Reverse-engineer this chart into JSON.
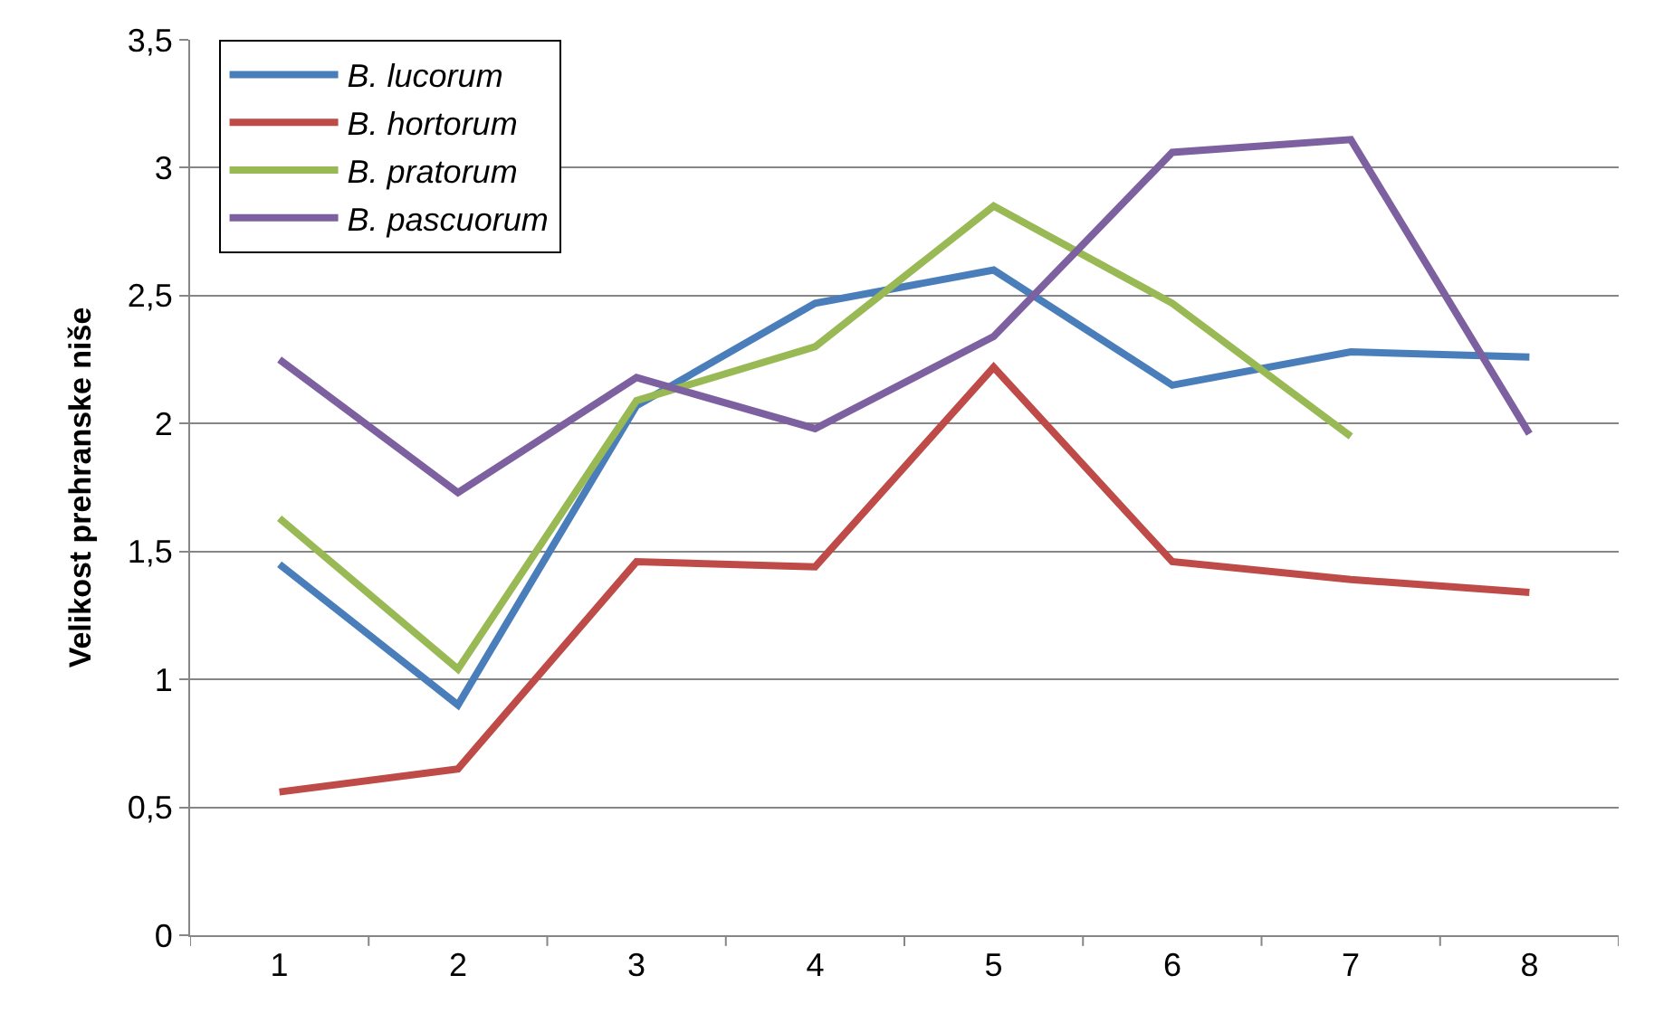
{
  "chart_data": {
    "type": "line",
    "ylabel": "Velikost prehranske niše",
    "categories": [
      "1",
      "2",
      "3",
      "4",
      "5",
      "6",
      "7",
      "8"
    ],
    "series": [
      {
        "name": "B. lucorum",
        "color": "#4a7ebb",
        "values": [
          1.45,
          0.9,
          2.07,
          2.47,
          2.6,
          2.15,
          2.28,
          2.26
        ]
      },
      {
        "name": "B. hortorum",
        "color": "#be4b48",
        "values": [
          0.56,
          0.65,
          1.46,
          1.44,
          2.22,
          1.46,
          1.39,
          1.34
        ]
      },
      {
        "name": "B. pratorum",
        "color": "#98b954",
        "values": [
          1.63,
          1.04,
          2.09,
          2.3,
          2.85,
          2.47,
          1.95,
          null
        ]
      },
      {
        "name": "B. pascuorum",
        "color": "#7d60a0",
        "values": [
          2.25,
          1.73,
          2.18,
          1.98,
          2.34,
          3.06,
          3.11,
          1.96
        ]
      }
    ],
    "ylim": [
      0,
      3.5
    ],
    "yticks": [
      0,
      {
        "value": 0.5,
        "label": "0,5"
      },
      1,
      {
        "value": 1.5,
        "label": "1,5"
      },
      2,
      {
        "value": 2.5,
        "label": "2,5"
      },
      3,
      {
        "value": 3.5,
        "label": "3,5"
      }
    ],
    "grid": "y",
    "legend": "top left",
    "marker": "none",
    "line_style": "solid"
  }
}
